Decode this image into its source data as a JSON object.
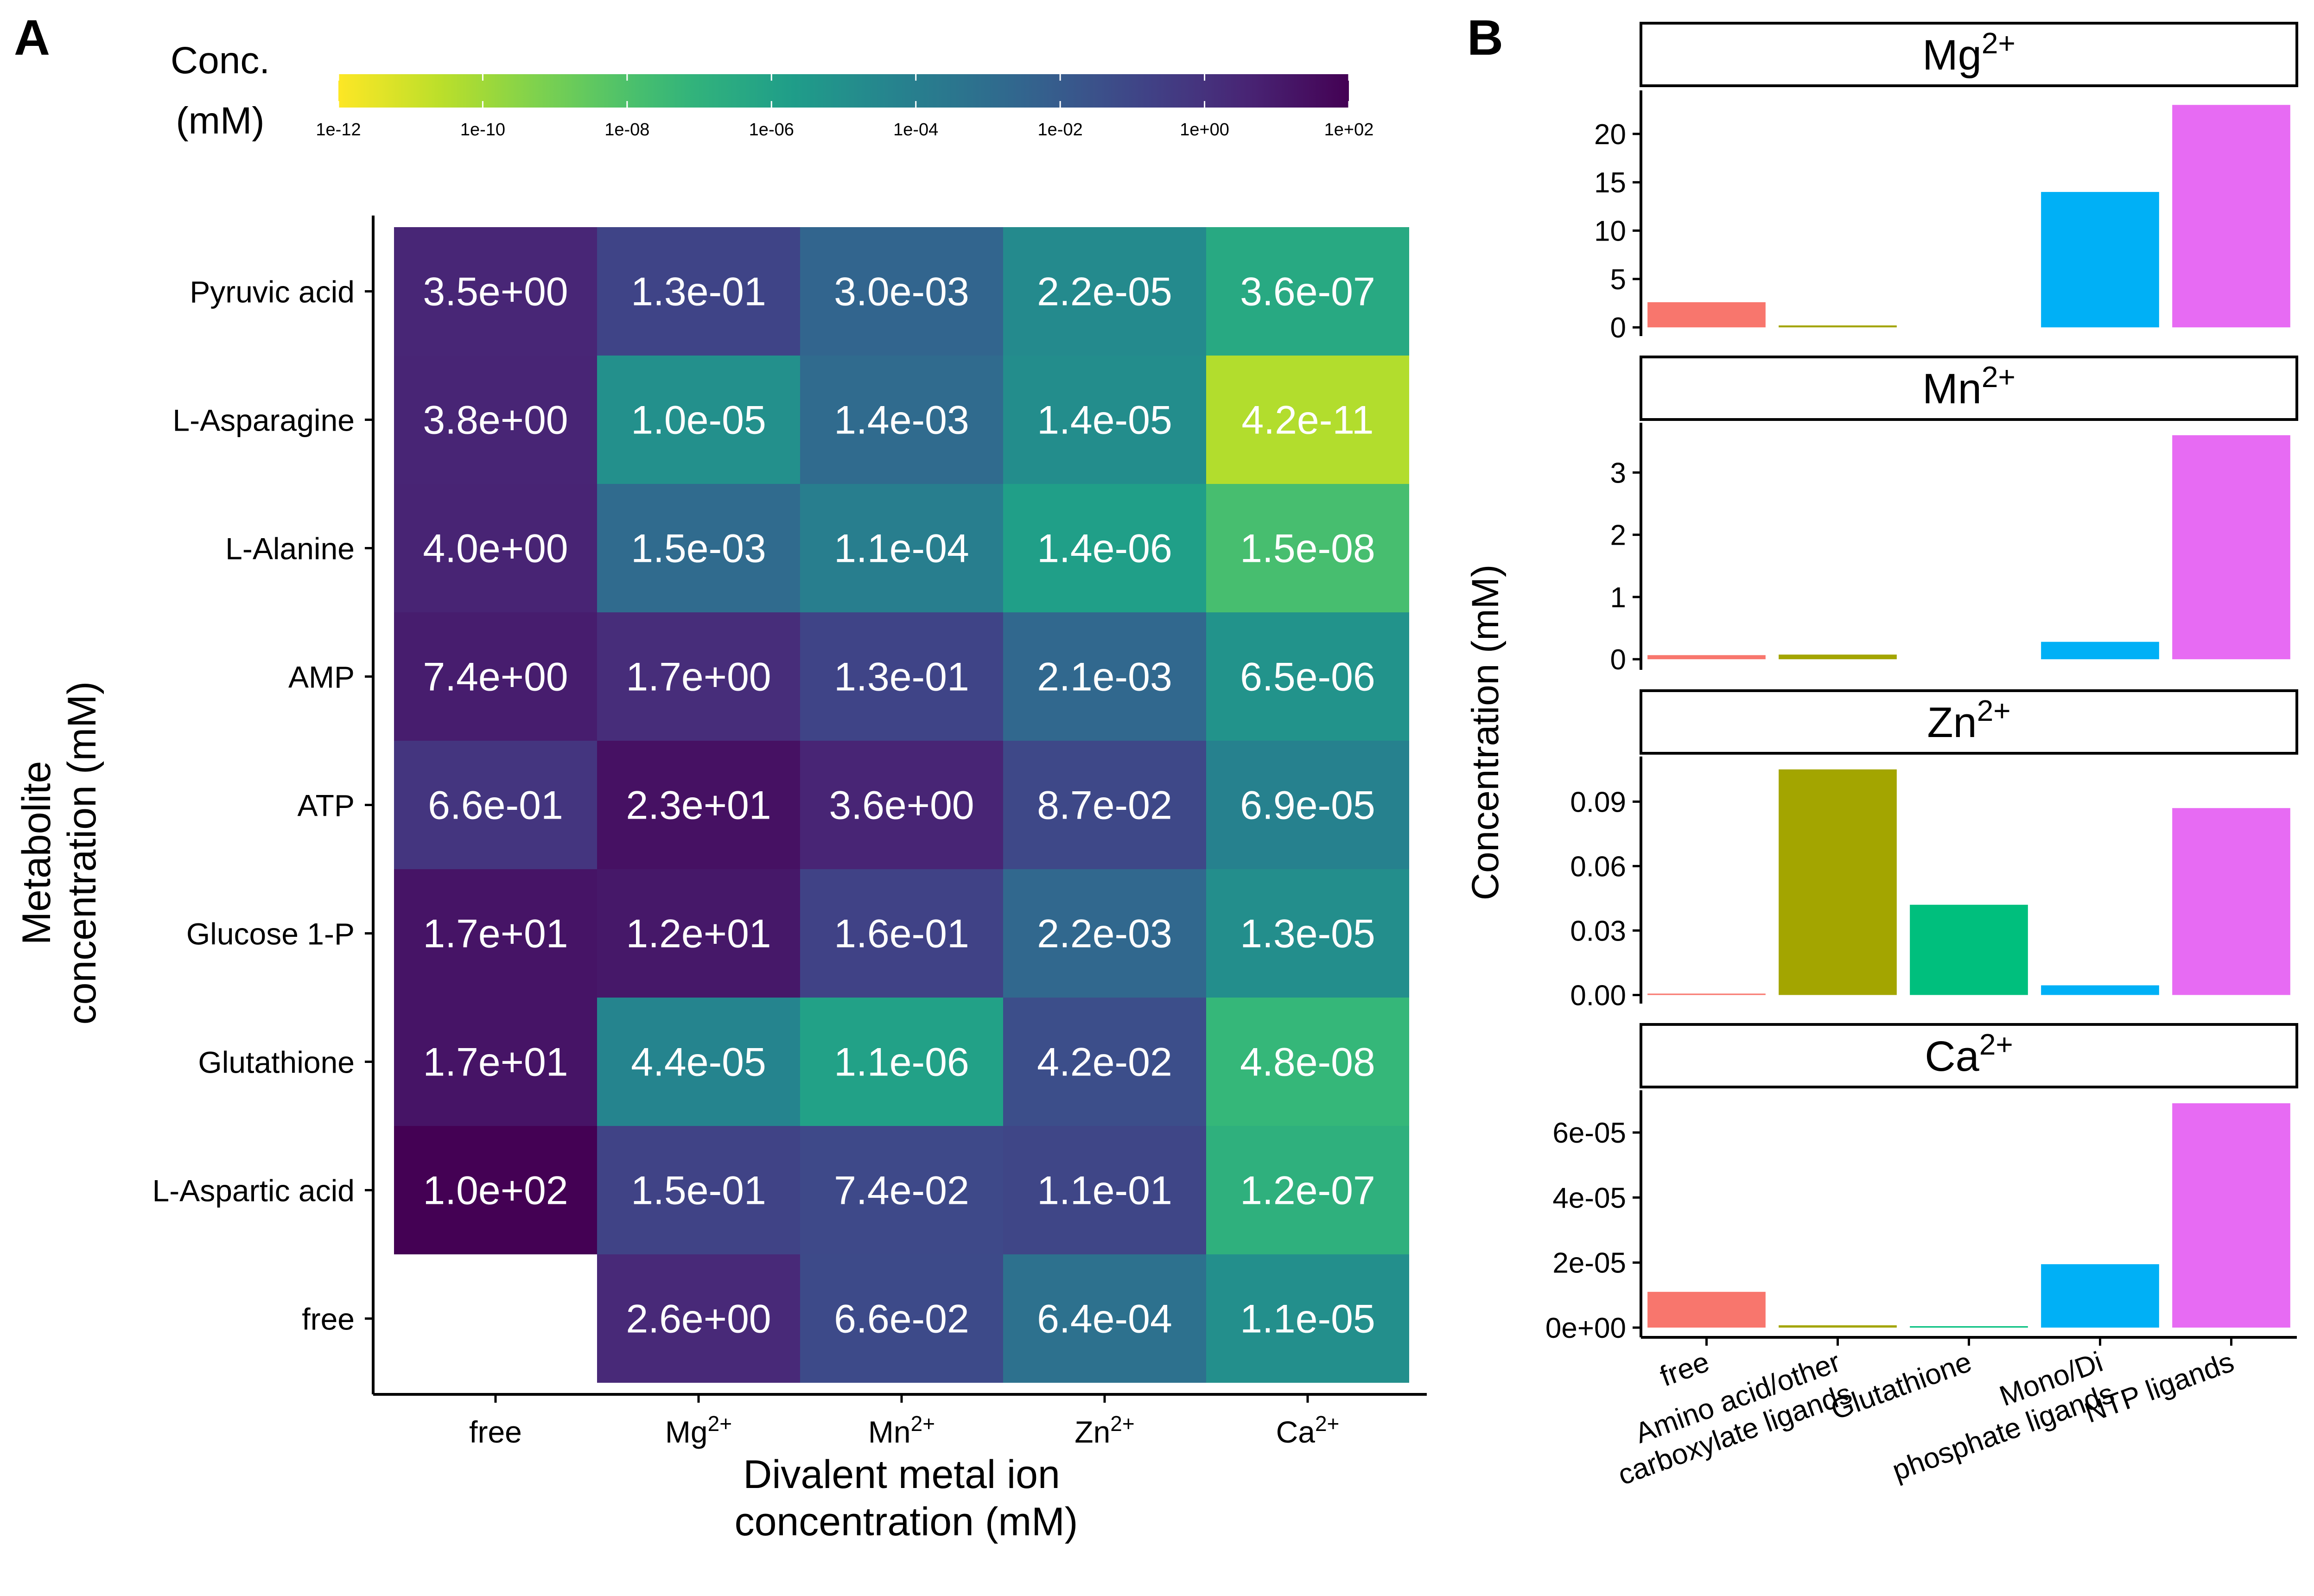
{
  "panels": {
    "a": {
      "label": "A"
    },
    "b": {
      "label": "B"
    }
  },
  "chart_data": [
    {
      "type": "heatmap",
      "panel": "A",
      "title": "",
      "xlabel": "Divalent metal ion concentration (mM)",
      "xlabel_lines": [
        "Divalent metal ion",
        "concentration (mM)"
      ],
      "ylabel": "Metabolite concentration (mM)",
      "ylabel_lines": [
        "Metabolite",
        "concentration (mM)"
      ],
      "colorbar": {
        "title_lines": [
          "Conc.",
          "(mM)"
        ],
        "scale": "log10",
        "colormap": "viridis (reversed: high = dark purple, low = yellow)",
        "range_log10": [
          -12,
          2
        ],
        "ticks": [
          {
            "label": "1e-12",
            "log10": -12
          },
          {
            "label": "1e-10",
            "log10": -10
          },
          {
            "label": "1e-08",
            "log10": -8
          },
          {
            "label": "1e-06",
            "log10": -6
          },
          {
            "label": "1e-04",
            "log10": -4
          },
          {
            "label": "1e-02",
            "log10": -2
          },
          {
            "label": "1e+00",
            "log10": 0
          },
          {
            "label": "1e+02",
            "log10": 2
          }
        ]
      },
      "columns": [
        {
          "text": "free",
          "sup": ""
        },
        {
          "text": "Mg",
          "sup": "2+"
        },
        {
          "text": "Mn",
          "sup": "2+"
        },
        {
          "text": "Zn",
          "sup": "2+"
        },
        {
          "text": "Ca",
          "sup": "2+"
        }
      ],
      "rows": [
        "Pyruvic acid",
        "L-Asparagine",
        "L-Alanine",
        "AMP",
        "ATP",
        "Glucose 1-P",
        "Glutathione",
        "L-Aspartic acid",
        "free"
      ],
      "cells": [
        [
          "3.5e+00",
          "1.3e-01",
          "3.0e-03",
          "2.2e-05",
          "3.6e-07"
        ],
        [
          "3.8e+00",
          "1.0e-05",
          "1.4e-03",
          "1.4e-05",
          "4.2e-11"
        ],
        [
          "4.0e+00",
          "1.5e-03",
          "1.1e-04",
          "1.4e-06",
          "1.5e-08"
        ],
        [
          "7.4e+00",
          "1.7e+00",
          "1.3e-01",
          "2.1e-03",
          "6.5e-06"
        ],
        [
          "6.6e-01",
          "2.3e+01",
          "3.6e+00",
          "8.7e-02",
          "6.9e-05"
        ],
        [
          "1.7e+01",
          "1.2e+01",
          "1.6e-01",
          "2.2e-03",
          "1.3e-05"
        ],
        [
          "1.7e+01",
          "4.4e-05",
          "1.1e-06",
          "4.2e-02",
          "4.8e-08"
        ],
        [
          "1.0e+02",
          "1.5e-01",
          "7.4e-02",
          "1.1e-01",
          "1.2e-07"
        ],
        [
          null,
          "2.6e+00",
          "6.6e-02",
          "6.4e-04",
          "1.1e-05"
        ]
      ]
    },
    {
      "type": "bar",
      "panel": "B",
      "layout": "faceted (4 stacked facets, free y scales)",
      "title": "",
      "xlabel": "",
      "ylabel": "Concentration (mM)",
      "categories": [
        "free",
        "Amino acid/other carboxylate ligands",
        "Glutathione",
        "Mono/Di phosphate ligands",
        "NTP ligands"
      ],
      "category_label_lines": [
        [
          "free"
        ],
        [
          "Amino acid/other",
          "carboxylate ligands"
        ],
        [
          "Glutathione"
        ],
        [
          "Mono/Di",
          "phosphate ligands"
        ],
        [
          "NTP ligands"
        ]
      ],
      "colors": [
        "#F8766D",
        "#A3A500",
        "#00BF7D",
        "#00B0F6",
        "#E76BF3"
      ],
      "facets": [
        {
          "name": "Mg",
          "sup": "2+",
          "ylim": [
            -0.9,
            24.5
          ],
          "yticks": [
            {
              "v": 0,
              "label": "0"
            },
            {
              "v": 5,
              "label": "5"
            },
            {
              "v": 10,
              "label": "10"
            },
            {
              "v": 15,
              "label": "15"
            },
            {
              "v": 20,
              "label": "20"
            }
          ],
          "values": [
            2.6,
            0.2,
            0,
            14.0,
            23.0
          ]
        },
        {
          "name": "Mn",
          "sup": "2+",
          "ylim": [
            -0.17,
            3.8
          ],
          "yticks": [
            {
              "v": 0,
              "label": "0"
            },
            {
              "v": 1,
              "label": "1"
            },
            {
              "v": 2,
              "label": "2"
            },
            {
              "v": 3,
              "label": "3"
            }
          ],
          "values": [
            0.066,
            0.075,
            0,
            0.28,
            3.6
          ]
        },
        {
          "name": "Zn",
          "sup": "2+",
          "ylim": [
            -0.004,
            0.111
          ],
          "yticks": [
            {
              "v": 0,
              "label": "0.00"
            },
            {
              "v": 0.03,
              "label": "0.03"
            },
            {
              "v": 0.06,
              "label": "0.06"
            },
            {
              "v": 0.09,
              "label": "0.09"
            }
          ],
          "values": [
            0.0006,
            0.105,
            0.042,
            0.0045,
            0.087
          ]
        },
        {
          "name": "Ca",
          "sup": "2+",
          "ylim": [
            -3e-06,
            7.3e-05
          ],
          "yticks": [
            {
              "v": 0,
              "label": "0e+00"
            },
            {
              "v": 2e-05,
              "label": "2e-05"
            },
            {
              "v": 4e-05,
              "label": "4e-05"
            },
            {
              "v": 6e-05,
              "label": "6e-05"
            }
          ],
          "values": [
            1.1e-05,
            7e-07,
            1e-07,
            1.95e-05,
            6.9e-05
          ]
        }
      ]
    }
  ]
}
